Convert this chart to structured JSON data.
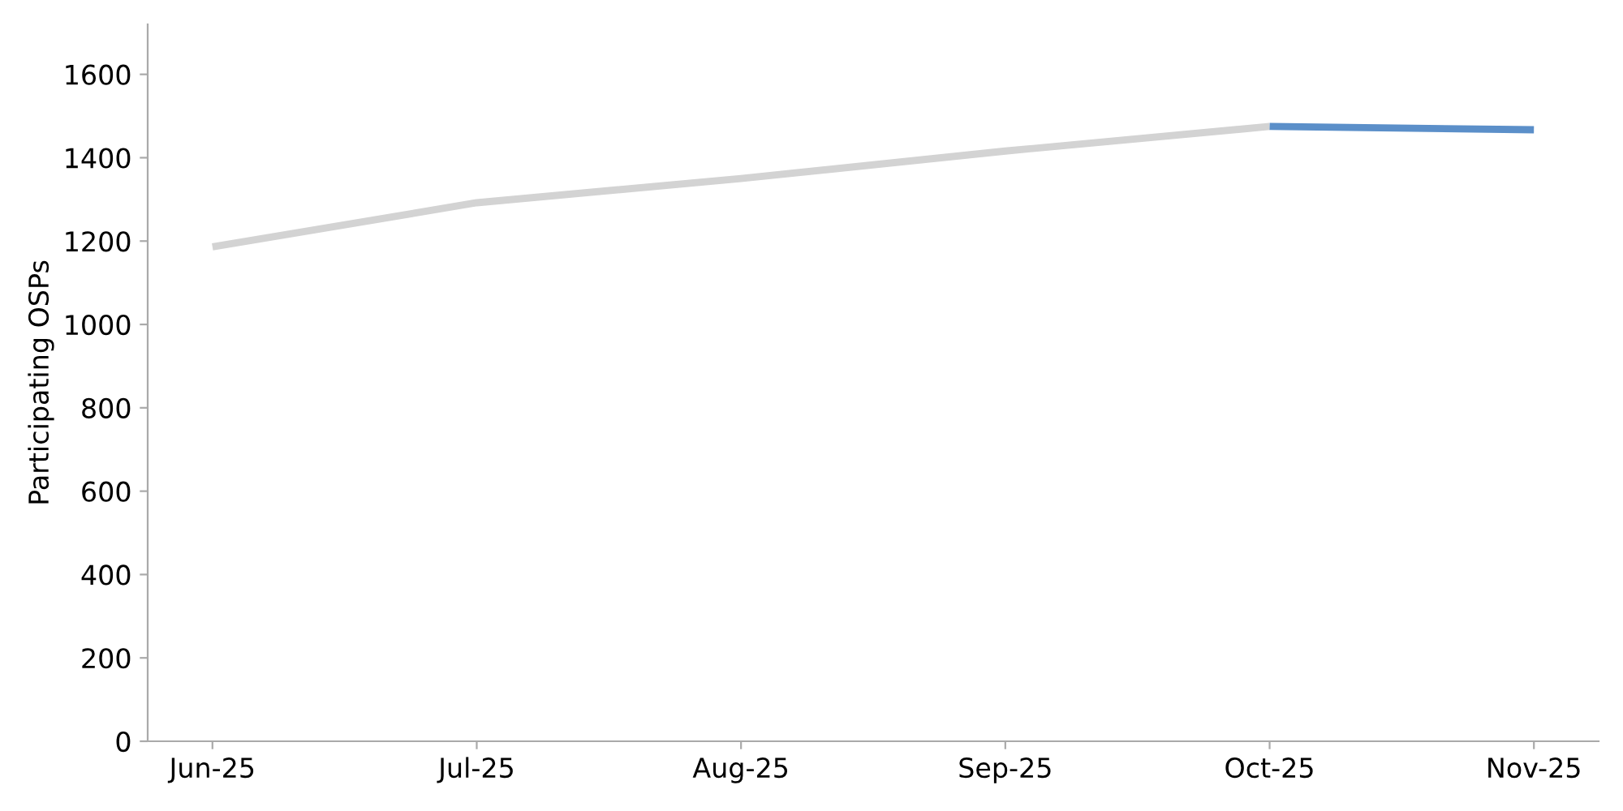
{
  "chart_data": {
    "type": "line",
    "ylabel": "Participating OSPs",
    "categories": [
      "Jun-25",
      "Jul-25",
      "Aug-25",
      "Sep-25",
      "Oct-25",
      "Nov-25"
    ],
    "series": [
      {
        "color": "#d3d3d3",
        "values": [
          1186,
          1292,
          1350,
          1416,
          1475,
          null
        ]
      },
      {
        "color": "#5b8fc9",
        "values": [
          null,
          null,
          null,
          null,
          1475,
          1467
        ]
      }
    ],
    "ylim": [
      0,
      1720
    ],
    "yticks": [
      0,
      200,
      400,
      600,
      800,
      1000,
      1200,
      1400,
      1600
    ],
    "grid": false,
    "legend": false,
    "marker": "none",
    "line_style": "solid"
  }
}
